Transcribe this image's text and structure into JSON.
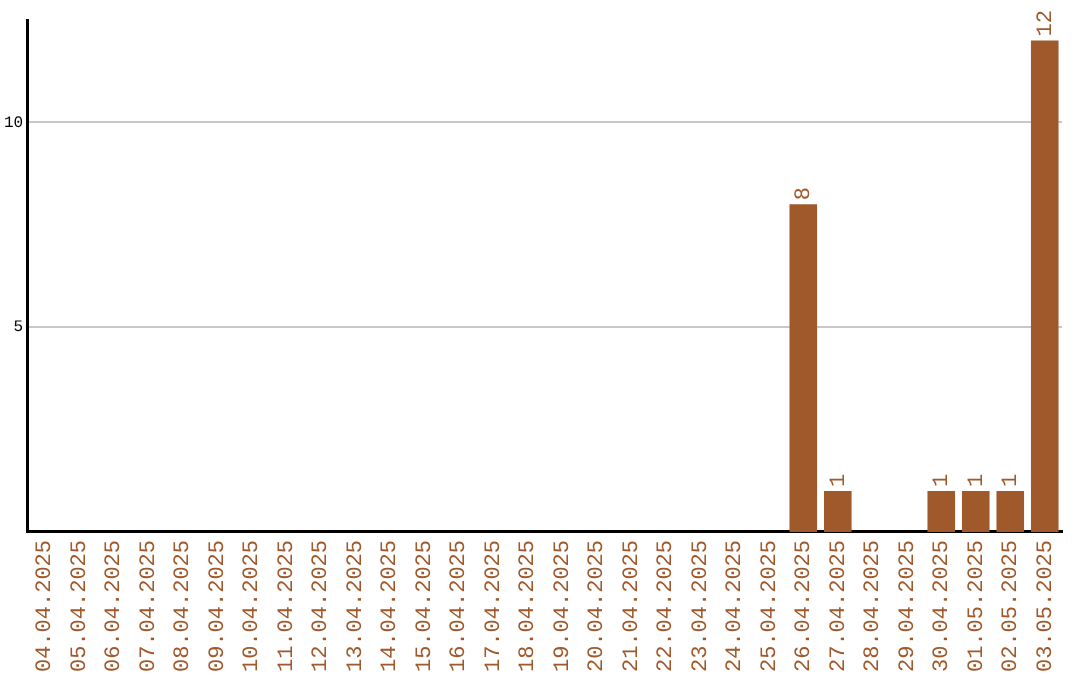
{
  "chart_data": {
    "type": "bar",
    "categories": [
      "04.04.2025",
      "05.04.2025",
      "06.04.2025",
      "07.04.2025",
      "08.04.2025",
      "09.04.2025",
      "10.04.2025",
      "11.04.2025",
      "12.04.2025",
      "13.04.2025",
      "14.04.2025",
      "15.04.2025",
      "16.04.2025",
      "17.04.2025",
      "18.04.2025",
      "19.04.2025",
      "20.04.2025",
      "21.04.2025",
      "22.04.2025",
      "23.04.2025",
      "24.04.2025",
      "25.04.2025",
      "26.04.2025",
      "27.04.2025",
      "28.04.2025",
      "29.04.2025",
      "30.04.2025",
      "01.05.2025",
      "02.05.2025",
      "03.05.2025"
    ],
    "values": [
      0,
      0,
      0,
      0,
      0,
      0,
      0,
      0,
      0,
      0,
      0,
      0,
      0,
      0,
      0,
      0,
      0,
      0,
      0,
      0,
      0,
      0,
      8,
      1,
      0,
      0,
      1,
      1,
      1,
      12
    ],
    "value_labels": [
      null,
      null,
      null,
      null,
      null,
      null,
      null,
      null,
      null,
      null,
      null,
      null,
      null,
      null,
      null,
      null,
      null,
      null,
      null,
      null,
      null,
      null,
      "8",
      "1",
      null,
      null,
      "1",
      "1",
      "1",
      "12"
    ],
    "color": "#a0592b",
    "ylim": [
      0,
      12.5
    ],
    "yticks": [
      5,
      10
    ],
    "grid": "y",
    "legend": false
  }
}
